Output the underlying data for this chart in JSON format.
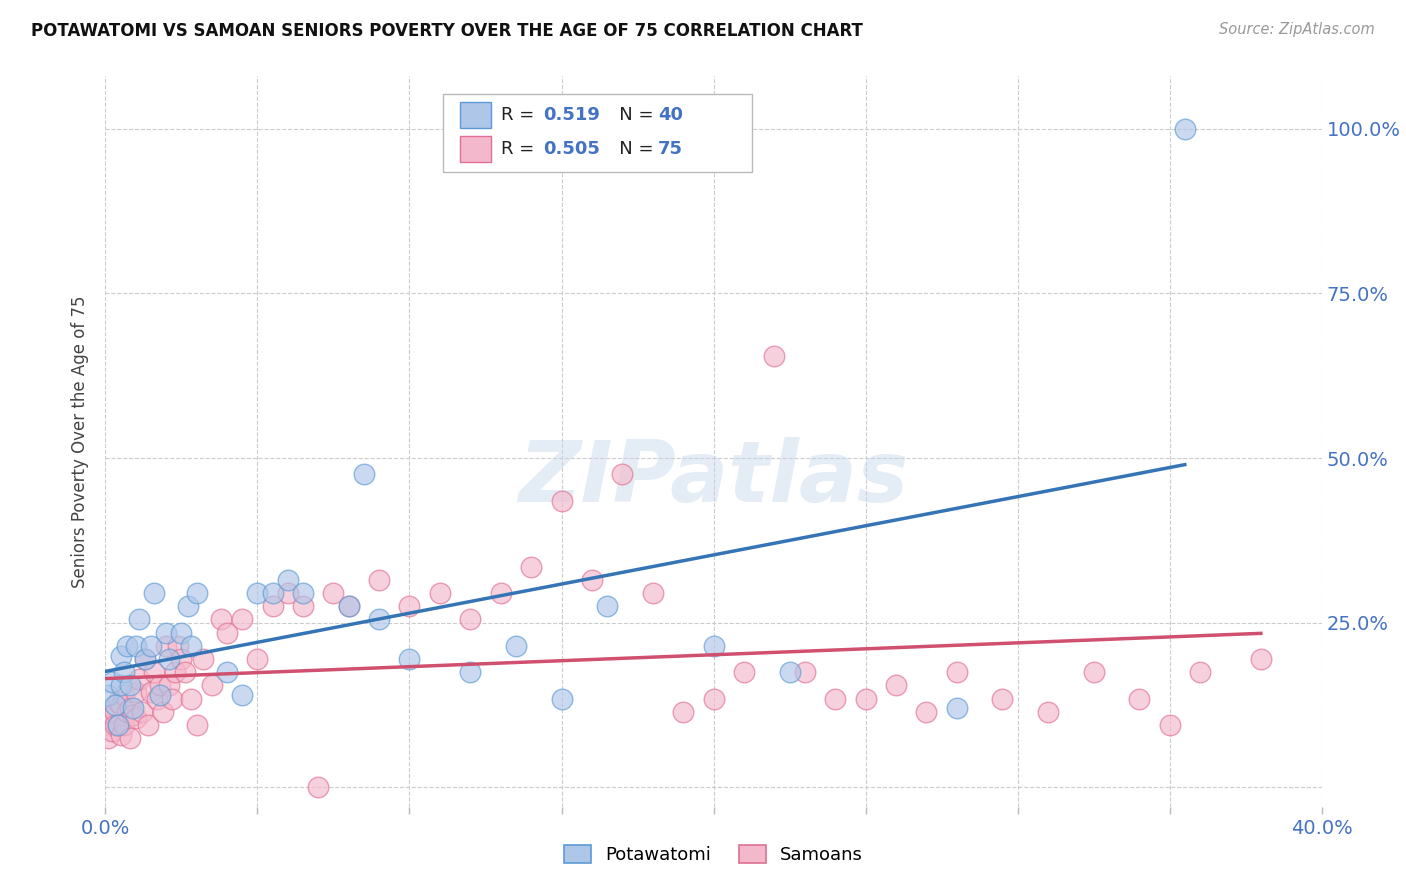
{
  "title": "POTAWATOMI VS SAMOAN SENIORS POVERTY OVER THE AGE OF 75 CORRELATION CHART",
  "source": "Source: ZipAtlas.com",
  "ylabel": "Seniors Poverty Over the Age of 75",
  "xlim": [
    0.0,
    0.4
  ],
  "ylim": [
    -0.03,
    1.08
  ],
  "xtick_positions": [
    0.0,
    0.05,
    0.1,
    0.15,
    0.2,
    0.25,
    0.3,
    0.35,
    0.4
  ],
  "ytick_positions": [
    0.0,
    0.25,
    0.5,
    0.75,
    1.0
  ],
  "yticklabels_right": [
    "",
    "25.0%",
    "50.0%",
    "75.0%",
    "100.0%"
  ],
  "potawatomi_R": "0.519",
  "potawatomi_N": "40",
  "samoan_R": "0.505",
  "samoan_N": "75",
  "blue_fill": "#aec6e8",
  "blue_edge": "#5b9bd5",
  "pink_fill": "#f4b8cc",
  "pink_edge": "#e07090",
  "blue_line": "#3575b5",
  "pink_line": "#d05070",
  "label_color": "#4472c4",
  "watermark": "ZIPatlas",
  "potawatomi_x": [
    0.001,
    0.002,
    0.003,
    0.004,
    0.005,
    0.005,
    0.006,
    0.007,
    0.008,
    0.009,
    0.01,
    0.011,
    0.013,
    0.015,
    0.016,
    0.018,
    0.02,
    0.021,
    0.025,
    0.027,
    0.028,
    0.03,
    0.04,
    0.045,
    0.05,
    0.055,
    0.06,
    0.065,
    0.08,
    0.085,
    0.09,
    0.1,
    0.12,
    0.135,
    0.15,
    0.165,
    0.2,
    0.225,
    0.28,
    0.355
  ],
  "potawatomi_y": [
    0.14,
    0.16,
    0.125,
    0.095,
    0.2,
    0.155,
    0.175,
    0.215,
    0.155,
    0.12,
    0.215,
    0.255,
    0.195,
    0.215,
    0.295,
    0.14,
    0.235,
    0.195,
    0.235,
    0.275,
    0.215,
    0.295,
    0.175,
    0.14,
    0.295,
    0.295,
    0.315,
    0.295,
    0.275,
    0.475,
    0.255,
    0.195,
    0.175,
    0.215,
    0.135,
    0.275,
    0.215,
    0.175,
    0.12,
    1.0
  ],
  "samoan_x": [
    0.001,
    0.001,
    0.002,
    0.002,
    0.003,
    0.003,
    0.004,
    0.004,
    0.005,
    0.005,
    0.006,
    0.006,
    0.007,
    0.008,
    0.008,
    0.009,
    0.01,
    0.01,
    0.011,
    0.012,
    0.013,
    0.014,
    0.015,
    0.016,
    0.017,
    0.018,
    0.019,
    0.02,
    0.021,
    0.022,
    0.023,
    0.024,
    0.025,
    0.026,
    0.028,
    0.03,
    0.032,
    0.035,
    0.038,
    0.04,
    0.045,
    0.05,
    0.055,
    0.06,
    0.065,
    0.07,
    0.075,
    0.08,
    0.09,
    0.1,
    0.11,
    0.12,
    0.13,
    0.14,
    0.15,
    0.16,
    0.17,
    0.18,
    0.19,
    0.2,
    0.21,
    0.22,
    0.23,
    0.24,
    0.25,
    0.26,
    0.27,
    0.28,
    0.295,
    0.31,
    0.325,
    0.34,
    0.35,
    0.36,
    0.38
  ],
  "samoan_y": [
    0.095,
    0.075,
    0.11,
    0.085,
    0.115,
    0.095,
    0.095,
    0.13,
    0.08,
    0.125,
    0.095,
    0.14,
    0.115,
    0.075,
    0.12,
    0.11,
    0.145,
    0.105,
    0.165,
    0.115,
    0.195,
    0.095,
    0.145,
    0.175,
    0.135,
    0.155,
    0.115,
    0.215,
    0.155,
    0.135,
    0.175,
    0.215,
    0.195,
    0.175,
    0.135,
    0.095,
    0.195,
    0.155,
    0.255,
    0.235,
    0.255,
    0.195,
    0.275,
    0.295,
    0.275,
    0.0,
    0.295,
    0.275,
    0.315,
    0.275,
    0.295,
    0.255,
    0.295,
    0.335,
    0.435,
    0.315,
    0.475,
    0.295,
    0.115,
    0.135,
    0.175,
    0.655,
    0.175,
    0.135,
    0.135,
    0.155,
    0.115,
    0.175,
    0.135,
    0.115,
    0.175,
    0.135,
    0.095,
    0.175,
    0.195
  ]
}
